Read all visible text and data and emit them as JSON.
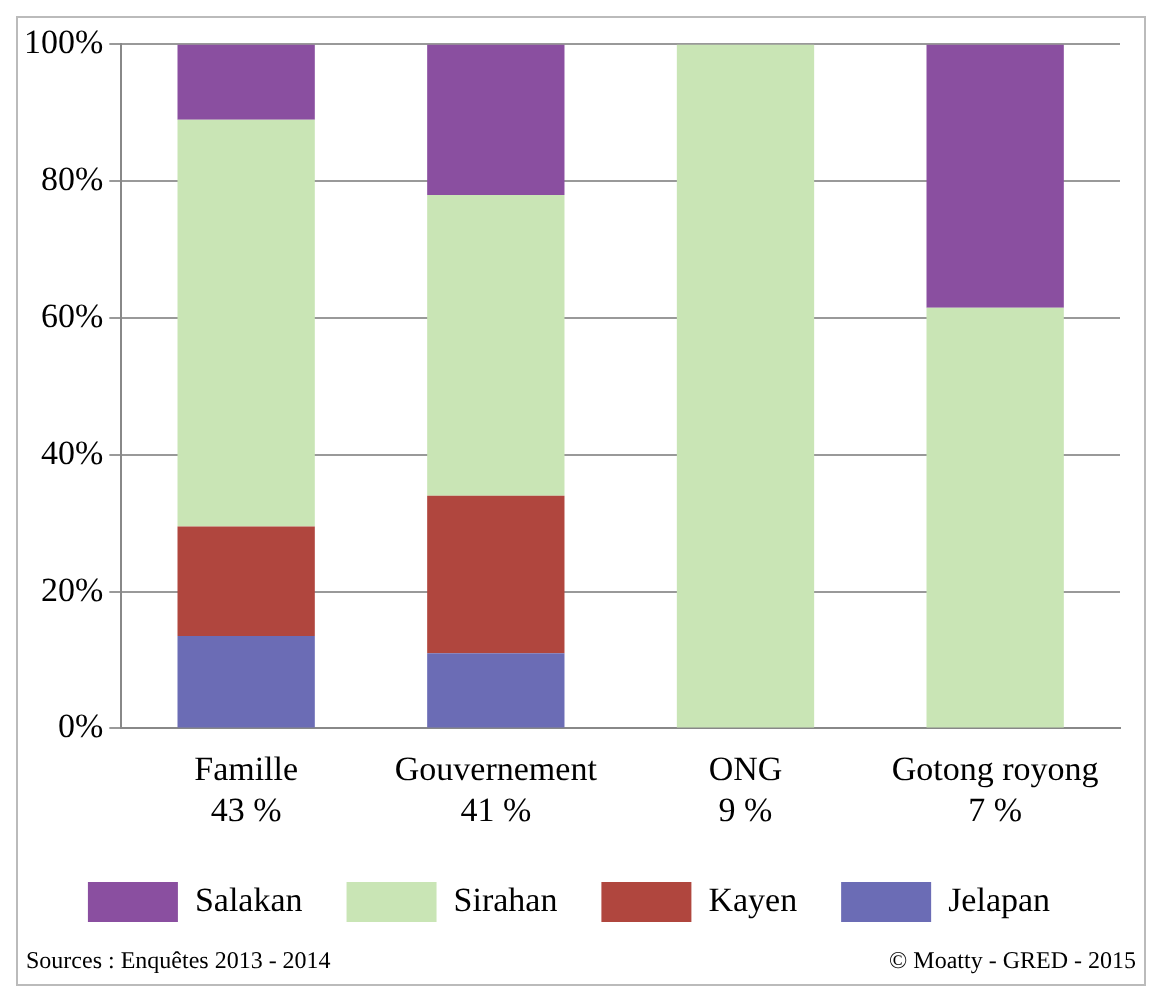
{
  "chart_data": {
    "type": "bar",
    "stacked": true,
    "categories": [
      "Famille\n43 %",
      "Gouvernement\n41 %",
      "ONG\n9 %",
      "Gotong royong\n7 %"
    ],
    "series": [
      {
        "name": "Jelapan",
        "color": "#6b6cb5",
        "values": [
          13.5,
          11,
          0,
          0
        ]
      },
      {
        "name": "Kayen",
        "color": "#b0463e",
        "values": [
          16,
          23,
          0,
          0
        ]
      },
      {
        "name": "Sirahan",
        "color": "#c9e5b5",
        "values": [
          59.5,
          44,
          100,
          61.5
        ]
      },
      {
        "name": "Salakan",
        "color": "#8a4fa0",
        "values": [
          11,
          22,
          0,
          38.5
        ]
      }
    ],
    "ylim": [
      0,
      100
    ],
    "yticks": [
      {
        "value": 0,
        "label": "0%"
      },
      {
        "value": 20,
        "label": "20%"
      },
      {
        "value": 40,
        "label": "40%"
      },
      {
        "value": 60,
        "label": "60%"
      },
      {
        "value": 80,
        "label": "80%"
      },
      {
        "value": 100,
        "label": "100%"
      }
    ],
    "grid": "y",
    "legend": "bottom",
    "annotations": [
      "Sources : Enquêtes 2013 - 2014",
      "© Moatty - GRED - 2015"
    ]
  }
}
